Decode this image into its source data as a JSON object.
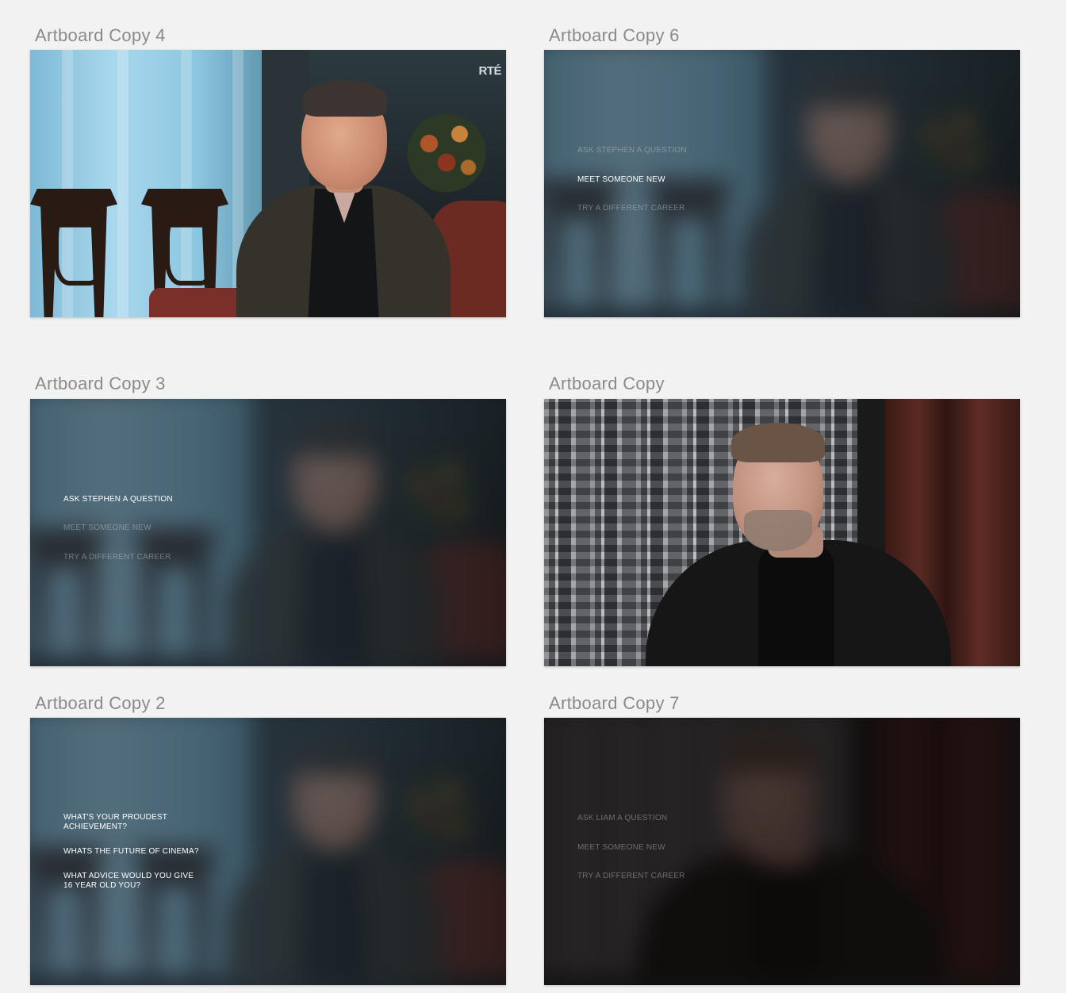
{
  "artboards": {
    "copy4": {
      "title": "Artboard Copy 4",
      "logo": "RTÉ"
    },
    "copy6": {
      "title": "Artboard Copy 6",
      "menu": [
        "ASK STEPHEN A QUESTION",
        "MEET SOMEONE NEW",
        "TRY A DIFFERENT CAREER"
      ],
      "active_index": 1
    },
    "copy3": {
      "title": "Artboard Copy 3",
      "menu": [
        "ASK STEPHEN A QUESTION",
        "MEET SOMEONE NEW",
        "TRY A DIFFERENT CAREER"
      ],
      "active_index": 0
    },
    "copy": {
      "title": "Artboard Copy"
    },
    "copy2": {
      "title": "Artboard Copy 2",
      "questions": [
        "WHAT'S YOUR PROUDEST ACHIEVEMENT?",
        "WHATS THE FUTURE OF CINEMA?",
        "WHAT ADVICE WOULD YOU GIVE 16 YEAR OLD YOU?"
      ]
    },
    "copy7": {
      "title": "Artboard Copy 7",
      "menu": [
        "ASK LIAM A QUESTION",
        "MEET SOMEONE NEW",
        "TRY A DIFFERENT CAREER"
      ],
      "active_index": -1
    }
  }
}
